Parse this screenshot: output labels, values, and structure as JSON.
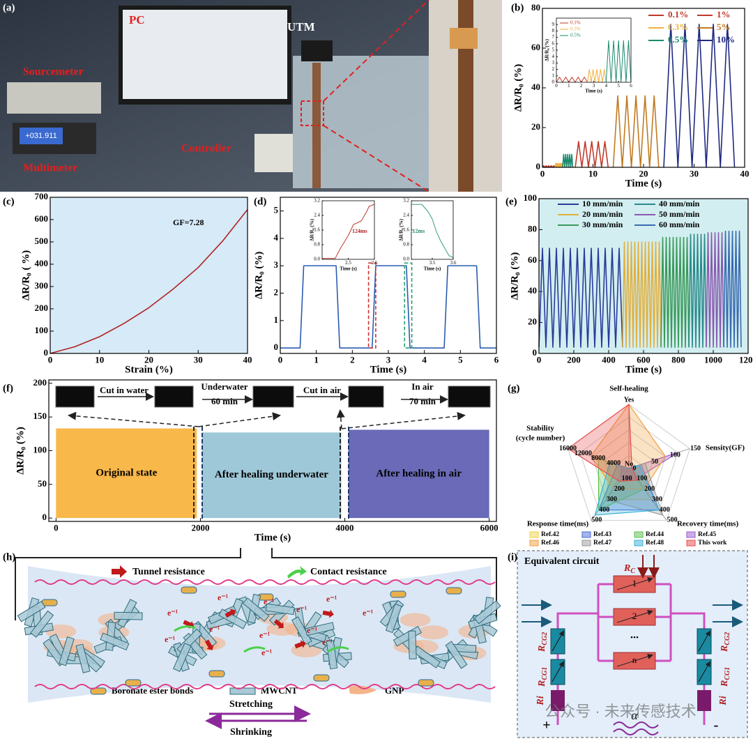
{
  "panel_labels": [
    "(a)",
    "(b)",
    "(c)",
    "(d)",
    "(e)",
    "(f)",
    "(g)",
    "(h)",
    "(i)"
  ],
  "photo": {
    "labels": [
      "PC",
      "UTM",
      "Sourcemeter",
      "Controller",
      "Multimeter"
    ],
    "display": "+031.911"
  },
  "chart_data": [
    {
      "type": "line",
      "xlabel": "Time (s)",
      "ylabel": "ΔR/R₀ (%)",
      "xlim": [
        0,
        40
      ],
      "xticks": [
        0,
        10,
        20,
        30,
        40
      ],
      "ylim": [
        0,
        80
      ],
      "yticks": [
        0,
        20,
        40,
        60,
        80
      ],
      "legend": "upper right",
      "series": [
        {
          "name": "0.1%",
          "color": "#c0392b",
          "x": [
            0,
            0.25,
            0.5,
            0.75,
            1,
            1.25,
            1.5,
            1.75,
            2,
            2.25,
            2.5
          ],
          "values": [
            0,
            0.8,
            0,
            0.8,
            0,
            0.8,
            0,
            0.8,
            0,
            0.8,
            0
          ]
        },
        {
          "name": "0.3%",
          "color": "#f0b040",
          "x": [
            2.5,
            2.65,
            2.8,
            2.95,
            3.1,
            3.25,
            3.4,
            3.55,
            3.7,
            3.85,
            4
          ],
          "values": [
            0,
            2,
            0,
            2,
            0,
            2,
            0,
            2,
            0,
            2,
            0
          ]
        },
        {
          "name": "0.5%",
          "color": "#1a8a6e",
          "x": [
            4,
            4.2,
            4.4,
            4.6,
            4.8,
            5,
            5.2,
            5.4,
            5.6,
            5.8,
            6
          ],
          "values": [
            0,
            6.5,
            0,
            6.5,
            0,
            6.5,
            0,
            6.5,
            0,
            6.5,
            0
          ]
        },
        {
          "name": "1%",
          "color": "#c0392b",
          "x": [
            6.5,
            7.15,
            7.8,
            8.45,
            9.1,
            9.75,
            10.4,
            11.05,
            11.7,
            12.35,
            13
          ],
          "values": [
            0,
            13,
            0,
            13,
            0,
            13,
            0,
            13,
            0,
            13,
            0
          ]
        },
        {
          "name": "5%",
          "color": "#c07a20",
          "x": [
            14,
            14.9,
            15.8,
            16.7,
            17.6,
            18.5,
            19.4,
            20.3,
            21.2,
            22.1,
            23
          ],
          "values": [
            0,
            36,
            0,
            36,
            0,
            36,
            0,
            36,
            0,
            36,
            0
          ]
        },
        {
          "name": "10%",
          "color": "#1f2a80",
          "x": [
            24,
            25.4,
            26.8,
            28.2,
            29.6,
            31,
            32.4,
            33.8,
            35.2,
            36.6,
            38
          ],
          "values": [
            0,
            72,
            0,
            72,
            0,
            72,
            0,
            72,
            0,
            72,
            0
          ]
        }
      ]
    },
    {
      "type": "line",
      "xlabel": "Time (s)",
      "ylabel": "ΔR/R₀ (%)",
      "xlim": [
        0,
        6
      ],
      "xticks": [
        0,
        1,
        2,
        3,
        4,
        5,
        6
      ],
      "ylim": [
        0,
        10
      ],
      "yticks": [
        0,
        1,
        2,
        3,
        4,
        5,
        6,
        7,
        8,
        9
      ],
      "legend": "upper left",
      "series": [
        {
          "name": "0.1%",
          "color": "#c0392b",
          "x": [
            0,
            0.25,
            0.5,
            0.75,
            1,
            1.25,
            1.5,
            1.75,
            2,
            2.25,
            2.5
          ],
          "values": [
            0,
            0.8,
            0,
            0.8,
            0,
            0.8,
            0,
            0.8,
            0,
            0.8,
            0
          ]
        },
        {
          "name": "0.3%",
          "color": "#f0b040",
          "x": [
            2.5,
            2.65,
            2.8,
            2.95,
            3.1,
            3.25,
            3.4,
            3.55,
            3.7,
            3.85,
            4
          ],
          "values": [
            0,
            2,
            0,
            2,
            0,
            2,
            0,
            2,
            0,
            2,
            0
          ]
        },
        {
          "name": "0.5%",
          "color": "#1a8a6e",
          "x": [
            4,
            4.2,
            4.4,
            4.6,
            4.8,
            5,
            5.2,
            5.4,
            5.6,
            5.8,
            6
          ],
          "values": [
            0,
            6.5,
            0,
            6.5,
            0,
            6.5,
            0,
            6.5,
            0,
            6.5,
            0
          ]
        }
      ]
    },
    {
      "type": "line",
      "xlabel": "Strain (%)",
      "ylabel": "ΔR/R₀ ( %)",
      "annotation": "GF=7.28",
      "background": "#d6eaf8",
      "xlim": [
        0,
        40
      ],
      "xticks": [
        0,
        10,
        20,
        30,
        40
      ],
      "ylim": [
        0,
        700
      ],
      "yticks": [
        0,
        100,
        200,
        300,
        400,
        500,
        600,
        700
      ],
      "series": [
        {
          "color": "#b22222",
          "x": [
            0,
            5,
            10,
            15,
            20,
            25,
            30,
            35,
            40
          ],
          "values": [
            0,
            30,
            75,
            135,
            205,
            290,
            385,
            505,
            645
          ]
        }
      ]
    },
    {
      "type": "line",
      "xlabel": "Time (s)",
      "ylabel": "ΔR/R₀ (%)",
      "xlim": [
        0,
        6
      ],
      "xticks": [
        0,
        1,
        2,
        3,
        4,
        5,
        6
      ],
      "ylim": [
        -0.2,
        5.5
      ],
      "yticks": [
        0,
        1,
        2,
        3,
        4,
        5
      ],
      "highlights": [
        {
          "xlim": [
            2.45,
            2.65
          ],
          "ylim": [
            0,
            3.1
          ],
          "color": "#d03030"
        },
        {
          "xlim": [
            3.45,
            3.65
          ],
          "ylim": [
            0,
            3.1
          ],
          "color": "#20a070"
        }
      ],
      "series": [
        {
          "color": "#2a5cb0",
          "x": [
            0,
            0.55,
            0.65,
            1.55,
            1.65,
            2.55,
            2.65,
            3.5,
            3.6,
            4.55,
            4.65,
            5.45,
            5.55,
            6
          ],
          "values": [
            0,
            0,
            3,
            3,
            0,
            0,
            3,
            3,
            0,
            0,
            3,
            3,
            0,
            0
          ]
        }
      ]
    },
    {
      "type": "line",
      "xlabel": "Time (s)",
      "ylabel": "ΔR/R₀ (%)",
      "annotation": "124ms",
      "xlim": [
        2.4,
        2.6
      ],
      "xticks": [
        2.5,
        2.6
      ],
      "ylim": [
        0,
        3.2
      ],
      "yticks": [
        {
          "value": 0,
          "label": "0.0"
        },
        0.8,
        1.6,
        2.4,
        3.2
      ],
      "series": [
        {
          "color": "#c0392b",
          "x": [
            2.4,
            2.45,
            2.47,
            2.5,
            2.52,
            2.55,
            2.57,
            2.58,
            2.6
          ],
          "values": [
            0.05,
            0.05,
            0.6,
            1.3,
            1.9,
            2.1,
            2.6,
            2.9,
            3.0
          ]
        }
      ]
    },
    {
      "type": "line",
      "xlabel": "Time (s)",
      "ylabel": "ΔR/R₀ (%)",
      "annotation": "112ms",
      "xlim": [
        3.4,
        3.6
      ],
      "xticks": [
        3.5,
        3.6
      ],
      "ylim": [
        0,
        3.2
      ],
      "yticks": [
        {
          "value": 0,
          "label": "0.0"
        },
        0.8,
        1.6,
        2.4,
        3.2
      ],
      "series": [
        {
          "color": "#3aa070",
          "x": [
            3.4,
            3.45,
            3.48,
            3.5,
            3.52,
            3.54,
            3.56,
            3.58,
            3.6
          ],
          "values": [
            3.0,
            3.0,
            2.6,
            2.2,
            1.5,
            1.0,
            0.6,
            0.2,
            0.1
          ]
        }
      ]
    },
    {
      "type": "line",
      "xlabel": "Time (s)",
      "ylabel": "ΔR/R₀ (%)",
      "background": "#d2eef0",
      "xlim": [
        0,
        1200
      ],
      "xticks": [
        0,
        200,
        400,
        600,
        800,
        1000,
        1200
      ],
      "ylim": [
        0,
        100
      ],
      "yticks": [
        0,
        20,
        40,
        60,
        80,
        100
      ],
      "legend": "upper left",
      "series": [
        {
          "name": "10 mm/min",
          "color": "#2a3a9a",
          "x": [
            0,
            20,
            40,
            60,
            80,
            100,
            120,
            140,
            160,
            180,
            200,
            220,
            240,
            260,
            280,
            300,
            320,
            340,
            360,
            380,
            400,
            420,
            440,
            460,
            480
          ],
          "values": [
            4,
            68,
            4,
            68,
            4,
            68,
            4,
            68,
            4,
            68,
            4,
            68,
            4,
            68,
            4,
            68,
            4,
            68,
            4,
            68,
            4,
            68,
            4,
            68,
            4
          ]
        },
        {
          "name": "20 mm/min",
          "color": "#e0b040",
          "x": [
            480,
            490,
            500,
            510,
            520,
            530,
            540,
            550,
            560,
            570,
            580,
            590,
            600,
            610,
            620,
            630,
            640,
            650,
            660,
            670,
            680,
            690,
            700
          ],
          "values": [
            4,
            72,
            4,
            72,
            4,
            72,
            4,
            72,
            4,
            72,
            4,
            72,
            4,
            72,
            4,
            72,
            4,
            72,
            4,
            72,
            4,
            72,
            4
          ]
        },
        {
          "name": "30 mm/min",
          "color": "#3a9a5a",
          "x": [
            700,
            710,
            720,
            730,
            740,
            750,
            760,
            770,
            780,
            790,
            800,
            810,
            820,
            830,
            840,
            850,
            860
          ],
          "values": [
            4,
            75,
            4,
            75,
            4,
            75,
            4,
            75,
            4,
            75,
            4,
            75,
            4,
            75,
            4,
            75,
            4
          ]
        },
        {
          "name": "40 mm/min",
          "color": "#2a8a8a",
          "x": [
            860,
            870,
            880,
            890,
            900,
            910,
            920,
            930,
            940,
            950,
            960
          ],
          "values": [
            4,
            77,
            4,
            77,
            4,
            77,
            4,
            77,
            4,
            77,
            4
          ]
        },
        {
          "name": "50 mm/min",
          "color": "#8a5ab0",
          "x": [
            960,
            970,
            980,
            990,
            1000,
            1010,
            1020,
            1030,
            1040,
            1050,
            1060
          ],
          "values": [
            4,
            78,
            4,
            78,
            4,
            78,
            4,
            78,
            4,
            78,
            4
          ]
        },
        {
          "name": "60 mm/min",
          "color": "#3a6ab0",
          "x": [
            1060,
            1070,
            1080,
            1090,
            1100,
            1110,
            1120,
            1130,
            1140,
            1150,
            1160
          ],
          "values": [
            4,
            79,
            4,
            79,
            4,
            79,
            4,
            79,
            4,
            79,
            4
          ]
        }
      ]
    },
    {
      "type": "area",
      "xlabel": "Time (s)",
      "ylabel": "ΔR/R₀ (%)",
      "xlim": [
        -100,
        6100
      ],
      "xticks": [
        0,
        2000,
        4000,
        6000
      ],
      "ylim": [
        -5,
        205
      ],
      "yticks": [
        0,
        50,
        100,
        150,
        200
      ],
      "annotations": [
        "Cut in water",
        "Underwater",
        "60 min",
        "Cut in air",
        "In air",
        "70 min"
      ],
      "series": [
        {
          "name": "Original state",
          "color": "#f9b84a",
          "x": [
            0,
            1950
          ],
          "values": [
            133,
            133
          ]
        },
        {
          "name": "After healing underwater",
          "color": "#9ec8d8",
          "x": [
            2020,
            3950
          ],
          "values": [
            127,
            127
          ]
        },
        {
          "name": "After healing in air",
          "color": "#6a6ab8",
          "x": [
            4050,
            6000
          ],
          "values": [
            131,
            131
          ]
        }
      ]
    },
    {
      "type": "radar",
      "legend": "bottom",
      "axes": [
        {
          "name": [
            "Self-healing"
          ],
          "lim": [
            0,
            1
          ],
          "ticks": [
            {
              "value": 0,
              "label": "No"
            },
            {
              "value": 1,
              "label": "Yes"
            }
          ]
        },
        {
          "name": [
            "Sensity(GF)"
          ],
          "lim": [
            0,
            150
          ],
          "ticks": [
            0,
            50,
            100,
            150
          ]
        },
        {
          "name": [
            "Recovery time(ms)"
          ],
          "lim": [
            0,
            500
          ],
          "ticks": [
            100,
            200,
            300,
            400,
            500
          ]
        },
        {
          "name": [
            "Response time(ms)"
          ],
          "lim": [
            0,
            500
          ],
          "ticks": [
            100,
            200,
            300,
            400,
            500
          ]
        },
        {
          "name": [
            "Stability",
            "(cycle number)"
          ],
          "lim": [
            0,
            16000
          ],
          "ticks": [
            4000,
            8000,
            12000,
            16000
          ]
        }
      ],
      "series": [
        {
          "name": "Ref.42",
          "color": "#f2d24a",
          "values": [
            0,
            20,
            300,
            300,
            5000
          ]
        },
        {
          "name": "Ref.43",
          "color": "#4a6ad8",
          "values": [
            0,
            30,
            400,
            400,
            3000
          ]
        },
        {
          "name": "Ref.44",
          "color": "#5ac04a",
          "values": [
            0,
            10,
            200,
            400,
            8000
          ]
        },
        {
          "name": "Ref.45",
          "color": "#9a5ad0",
          "values": [
            0,
            120,
            100,
            100,
            2000
          ]
        },
        {
          "name": "Ref.46",
          "color": "#f0a040",
          "values": [
            1,
            90,
            200,
            200,
            10000
          ]
        },
        {
          "name": "Ref.47",
          "color": "#9a9a9a",
          "values": [
            0,
            40,
            450,
            300,
            1000
          ]
        },
        {
          "name": "Ref.48",
          "color": "#3ab0d8",
          "values": [
            0,
            25,
            400,
            450,
            5000
          ]
        },
        {
          "name": "This work",
          "color": "#e84a4a",
          "values": [
            1,
            7.28,
            112,
            124,
            16000
          ]
        }
      ]
    }
  ],
  "mechanism": {
    "legend": [
      "Tunnel resistance",
      "Contact resistance"
    ],
    "components": [
      "Boronate ester bonds",
      "MWCNT",
      "GNP"
    ],
    "motion": [
      "Stretching",
      "Shrinking"
    ],
    "electrons": [
      "e⁻¹",
      "e⁻¹",
      "e⁻¹",
      "e⁻¹",
      "e⁻¹",
      "e⁻¹",
      "e⁻¹",
      "e⁻¹",
      "e⁻¹",
      "e⁻¹",
      "e⁻¹",
      "e⁻¹"
    ]
  },
  "circuit": {
    "title": "Equivalent circuit",
    "rc": {
      "main": "R",
      "sub": "C"
    },
    "rcg2": {
      "main": "R",
      "sub": "CG2"
    },
    "rcg1": {
      "main": "R",
      "sub": "CG1"
    },
    "ri": "Ri",
    "resistors": [
      "1",
      "2",
      "n"
    ],
    "ellipsis": "...",
    "plus": "+",
    "minus": "-",
    "symbol": "α"
  },
  "watermark": "公众号 · 未来传感技术"
}
